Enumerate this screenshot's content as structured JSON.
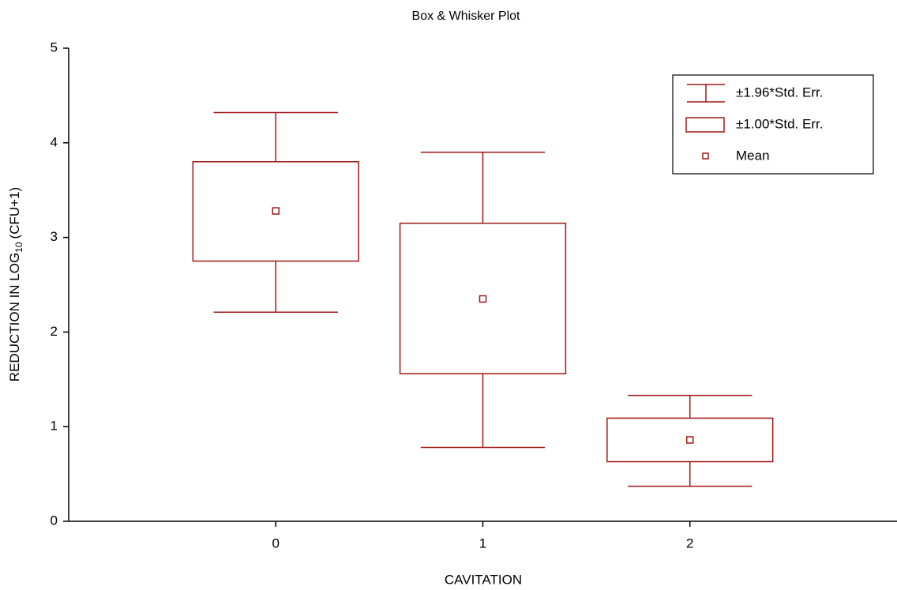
{
  "chart_data": {
    "type": "box",
    "title": "Box & Whisker Plot",
    "x_label": "CAVITATION",
    "y_label": {
      "text": "REDUCTION IN LOG",
      "subscript": "10",
      "suffix": "(CFU+1)"
    },
    "categories": [
      "0",
      "1",
      "2"
    ],
    "mean": [
      3.28,
      2.35,
      0.86
    ],
    "box_low": [
      2.75,
      1.56,
      0.63
    ],
    "box_high": [
      3.8,
      3.15,
      1.09
    ],
    "whisker_low": [
      2.21,
      0.78,
      0.37
    ],
    "whisker_high": [
      4.32,
      3.9,
      1.33
    ],
    "color": "#a01818",
    "ylim": [
      0,
      5
    ],
    "yticks": [
      0,
      1,
      2,
      3,
      4,
      5
    ],
    "legend": {
      "position": "upper right",
      "entries": [
        "±1.96*Std. Err.",
        "±1.00*Std. Err.",
        "Mean"
      ]
    }
  }
}
